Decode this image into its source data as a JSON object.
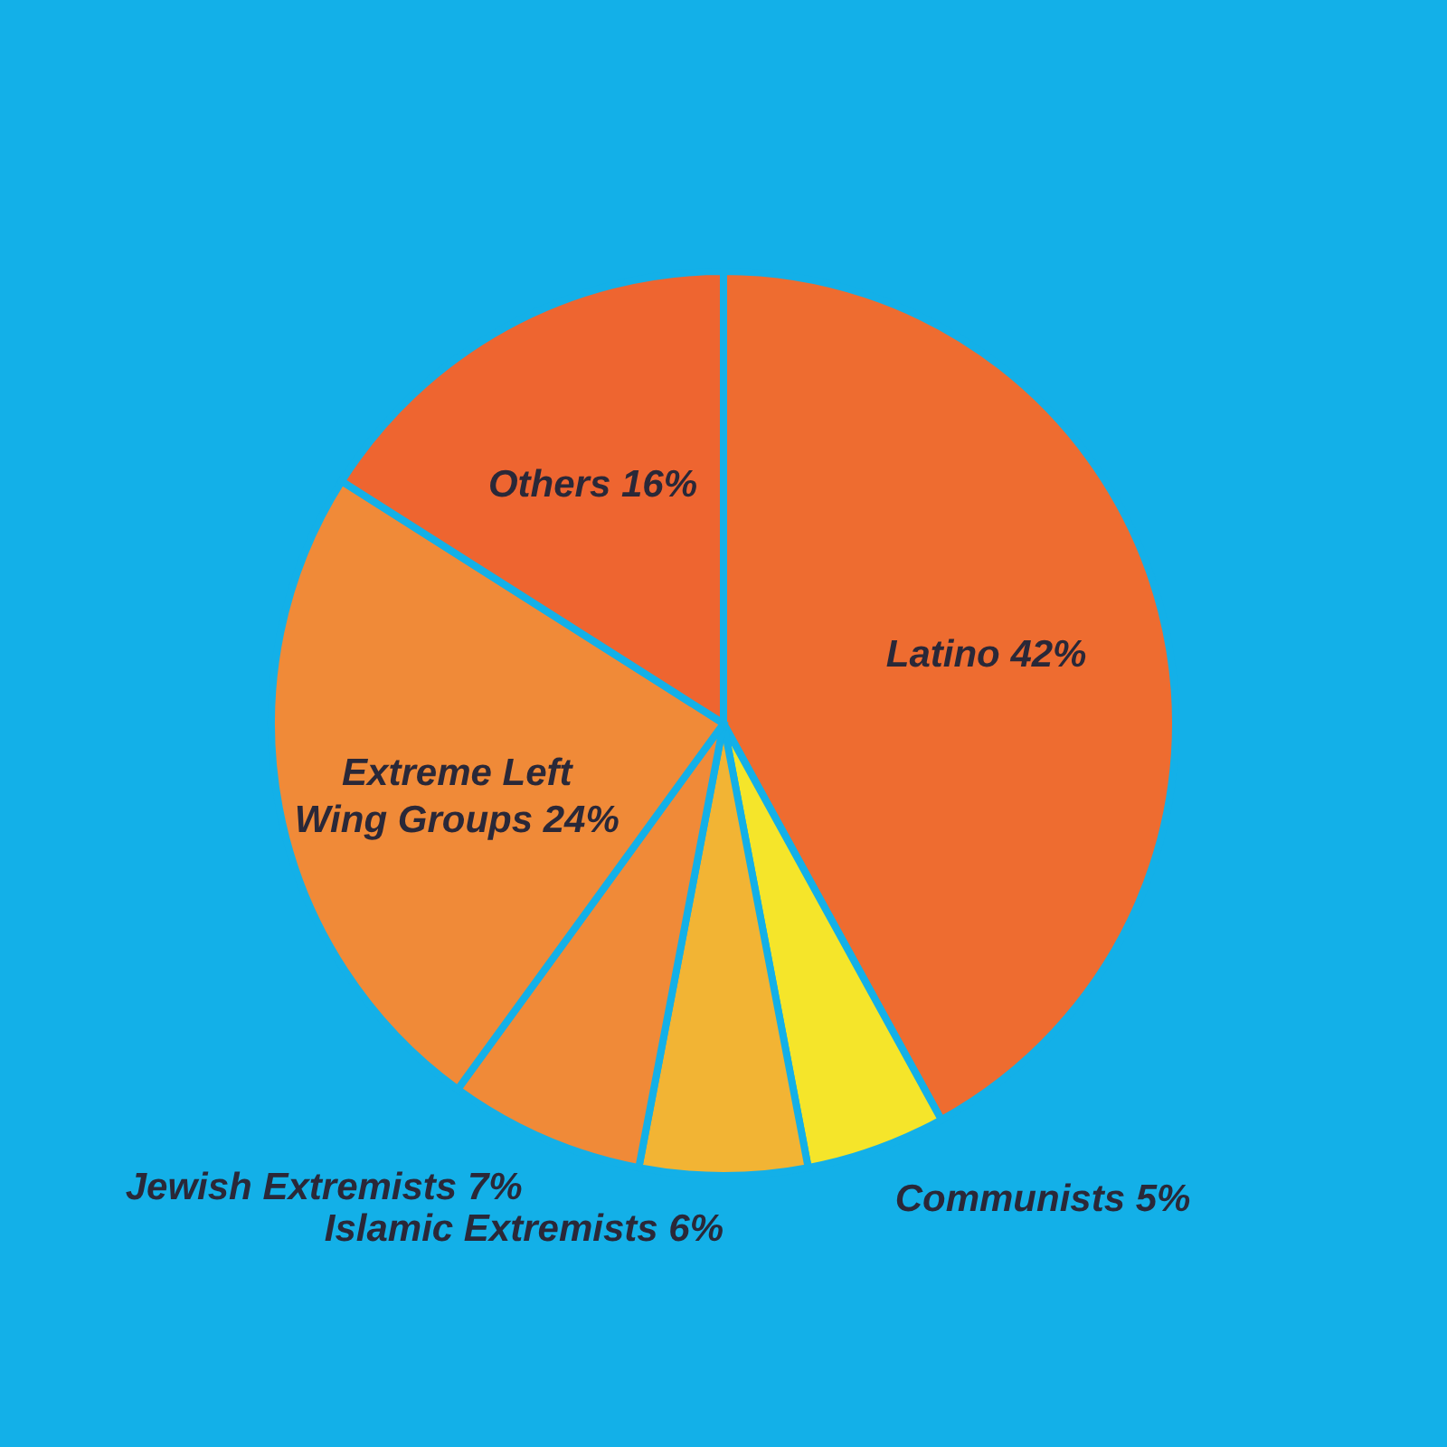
{
  "chart_data": {
    "type": "pie",
    "categories": [
      "Latino",
      "Communists",
      "Islamic Extremists",
      "Jewish Extremists",
      "Extreme Left Wing Groups",
      "Others"
    ],
    "values": [
      42,
      5,
      6,
      7,
      24,
      16
    ],
    "value_labels": [
      "42%",
      "5%",
      "6%",
      "7%",
      "24%",
      "16%"
    ],
    "colors": [
      "#ee6c30",
      "#f5e52a",
      "#f2b434",
      "#f08a38",
      "#f08a38",
      "#ee6530"
    ],
    "legend": false
  }
}
